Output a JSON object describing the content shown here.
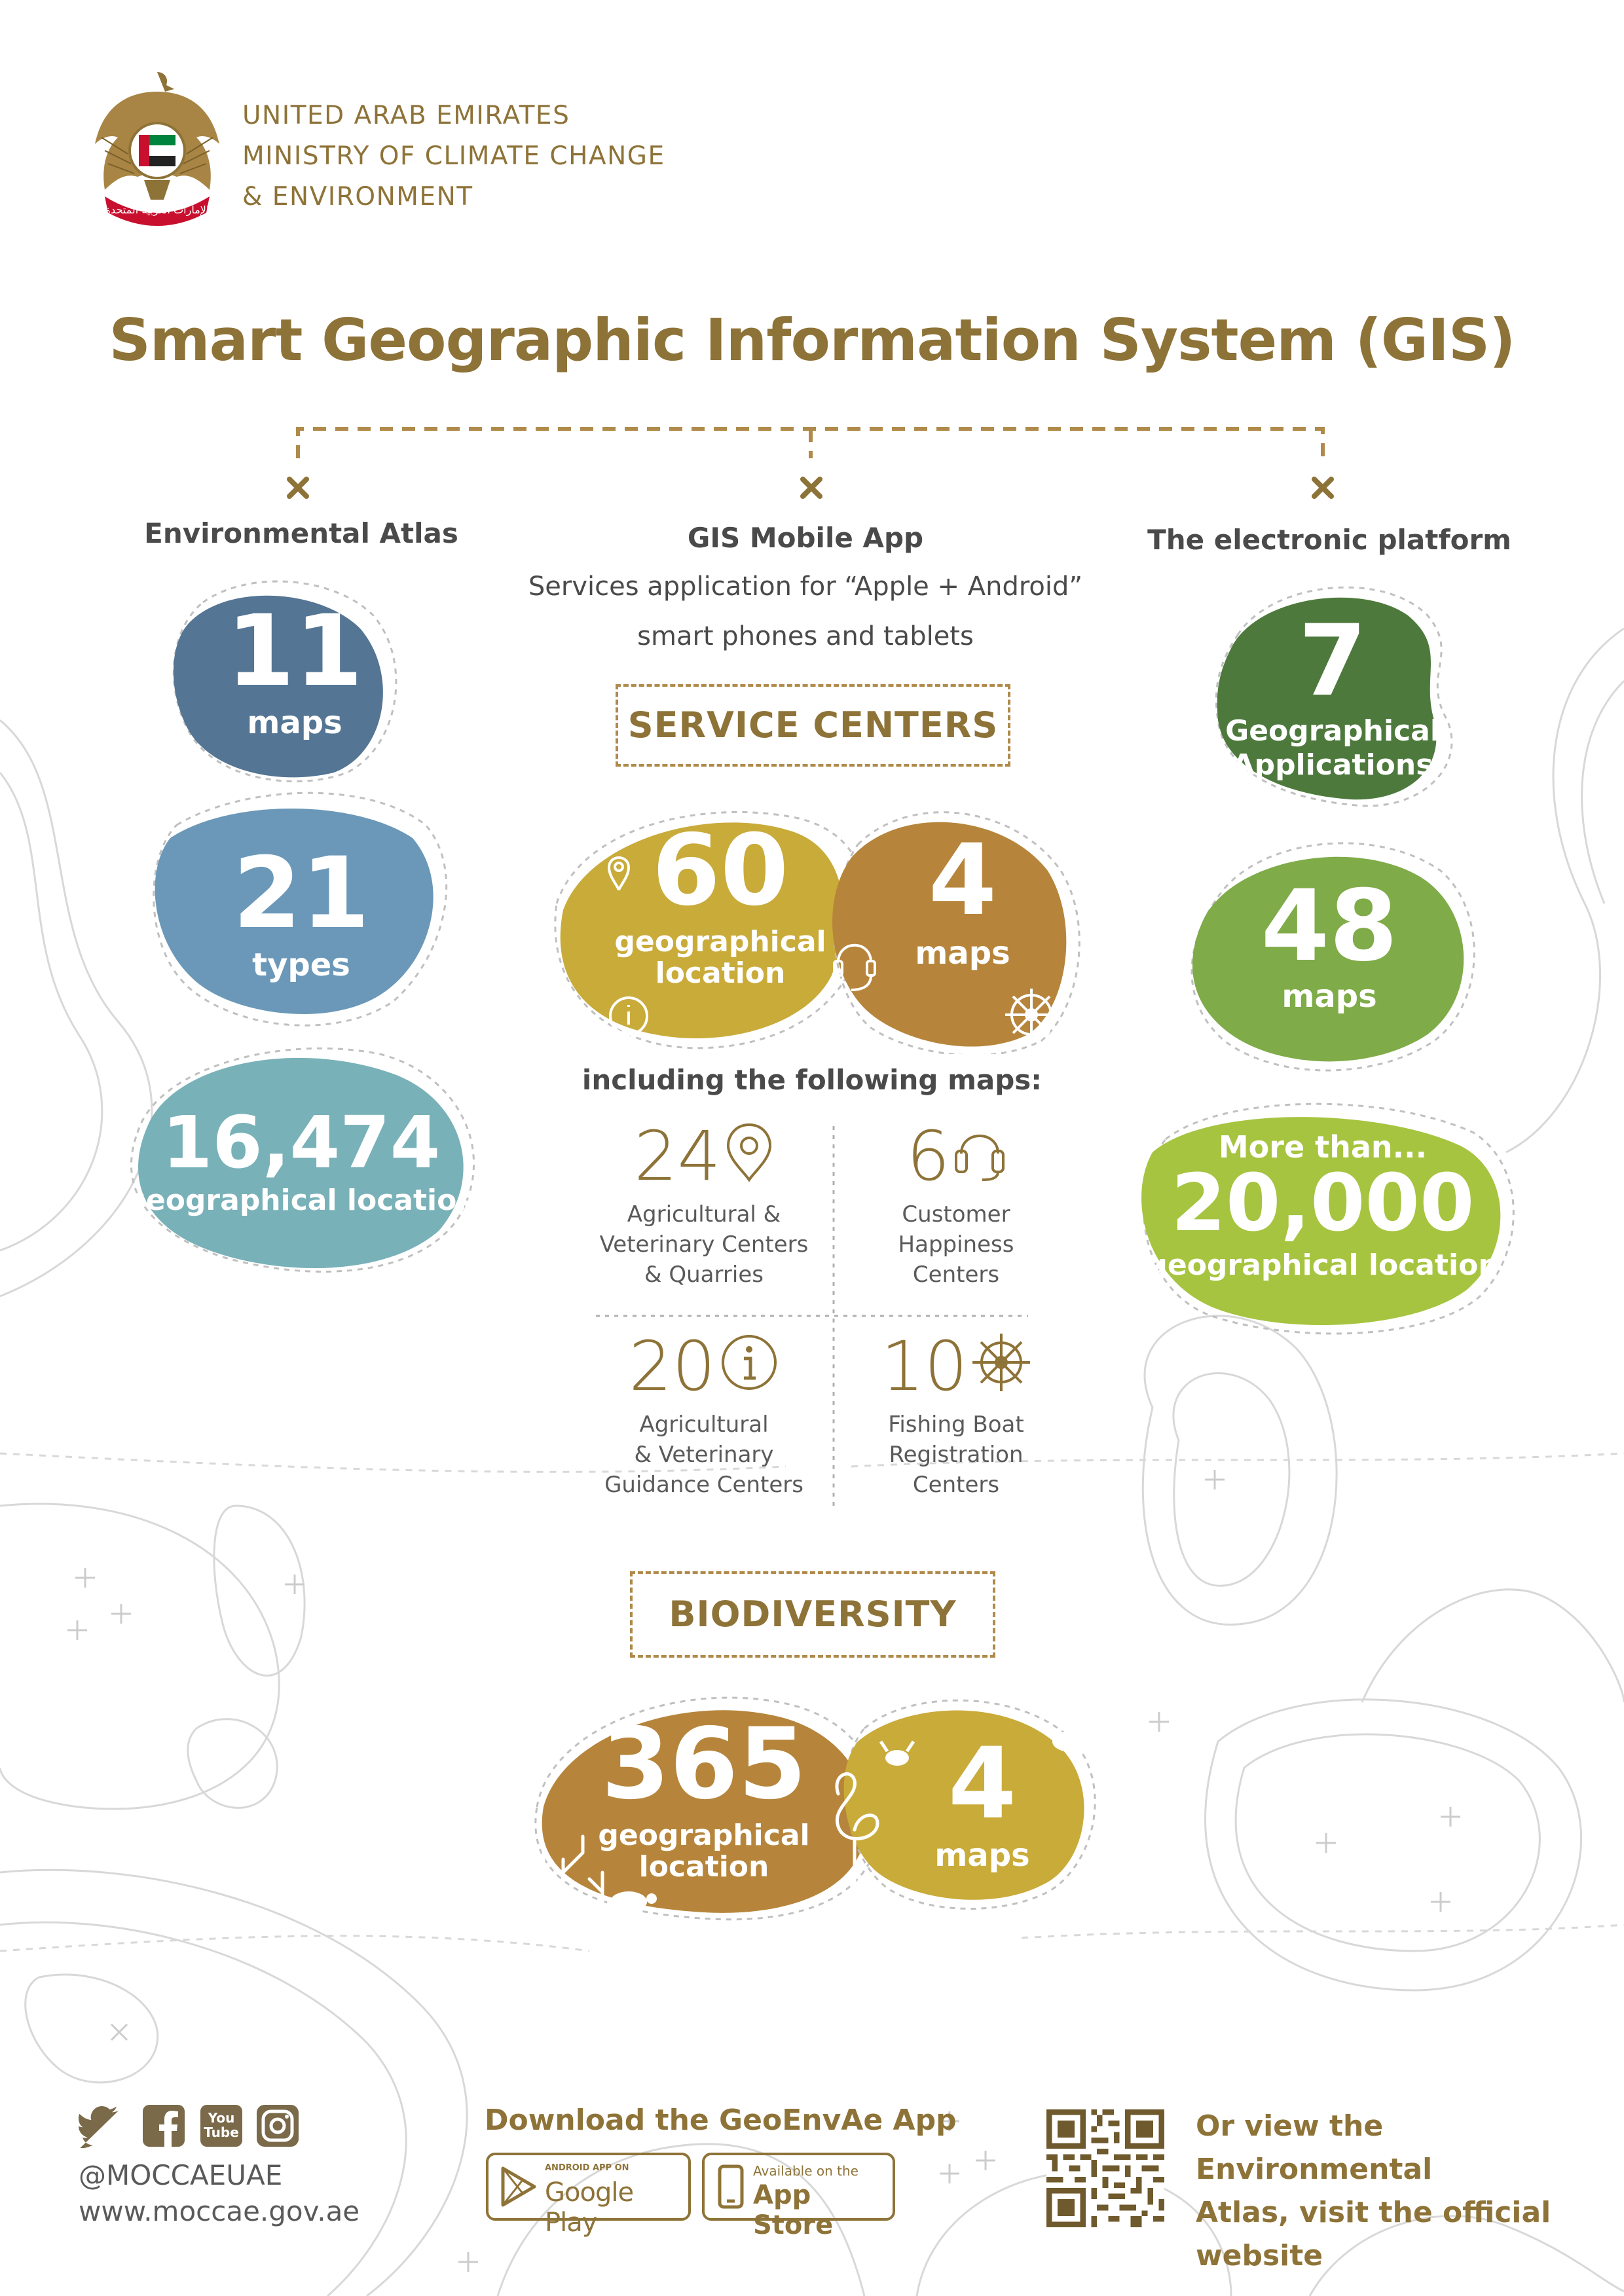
{
  "header": {
    "org_line1": "UNITED ARAB EMIRATES",
    "org_line2": "MINISTRY OF CLIMATE CHANGE",
    "org_line3": "& ENVIRONMENT",
    "emblem_script": "الإمارات العربية المتحدة"
  },
  "title": "Smart Geographic Information System (GIS)",
  "columns": {
    "left": {
      "heading": "Environmental Atlas",
      "stats": [
        {
          "value": "11",
          "label": "maps"
        },
        {
          "value": "21",
          "label": "types"
        },
        {
          "value": "16,474",
          "label": "geographical location"
        }
      ]
    },
    "center": {
      "heading": "GIS Mobile App",
      "subheading_line1": "Services application for “Apple + Android”",
      "subheading_line2": "smart phones and tablets",
      "service_centers": {
        "label": "SERVICE CENTERS",
        "stat1": {
          "value": "60",
          "line1": "geographical",
          "line2": "location"
        },
        "stat2": {
          "value": "4",
          "label": "maps"
        },
        "including": "including the following maps:",
        "items": [
          {
            "value": "24",
            "icon": "location-pin-icon",
            "line1": "Agricultural &",
            "line2": "Veterinary Centers",
            "line3": "& Quarries"
          },
          {
            "value": "6",
            "icon": "headset-icon",
            "line1": "Customer",
            "line2": "Happiness",
            "line3": "Centers"
          },
          {
            "value": "20",
            "icon": "info-icon",
            "line1": "Agricultural",
            "line2": "& Veterinary",
            "line3": "Guidance Centers"
          },
          {
            "value": "10",
            "icon": "ship-wheel-icon",
            "line1": "Fishing Boat",
            "line2": "Registration",
            "line3": "Centers"
          }
        ]
      },
      "biodiversity": {
        "label": "BIODIVERSITY",
        "stat1": {
          "value": "365",
          "line1": "geographical",
          "line2": "location"
        },
        "stat2": {
          "value": "4",
          "label": "maps"
        }
      }
    },
    "right": {
      "heading": "The electronic platform",
      "stats": [
        {
          "value": "7",
          "line1": "Geographical",
          "line2": "Applications"
        },
        {
          "value": "48",
          "label": "maps"
        },
        {
          "prefix": "More than...",
          "value": "20,000",
          "label": "geographical location"
        }
      ]
    }
  },
  "footer": {
    "social_handle": "@MOCCAEUAE",
    "website": "www.moccae.gov.ae",
    "youtube_text_1": "You",
    "youtube_text_2": "Tube",
    "download_title": "Download the GeoEnvAe App",
    "google_small": "ANDROID APP ON",
    "google_big": "Google Play",
    "apple_small": "Available on the",
    "apple_big": "App Store",
    "atlas_line1": "Or view the Environmental",
    "atlas_line2": "Atlas, visit the official",
    "atlas_line3": "website"
  },
  "colors": {
    "gold": "#8e7338",
    "slate_blue": "#547593",
    "steel_blue": "#6b98b8",
    "teal": "#79b1b8",
    "mustard": "#c9ab3a",
    "bronze": "#b6853b",
    "dark_green": "#4d7a3c",
    "mid_green": "#7fab48",
    "lime": "#a6c43f"
  }
}
